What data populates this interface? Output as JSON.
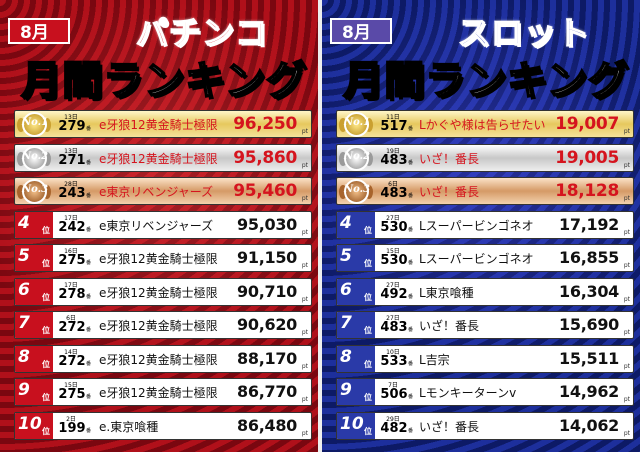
{
  "pachinko": {
    "month": "8月",
    "title_line1": "パチンコ",
    "title_line2": "月間ランキング",
    "rank_unit": "位",
    "point_unit": "pt",
    "day_unit": "日",
    "machine_unit": "番",
    "entries": [
      {
        "rank_label": "No.1",
        "day": "13日",
        "machine": "279",
        "name": "e牙狼12黄金騎士極限",
        "amount": "96,250"
      },
      {
        "rank_label": "No.2",
        "day": "13日",
        "machine": "271",
        "name": "e牙狼12黄金騎士極限",
        "amount": "95,860"
      },
      {
        "rank_label": "No.3",
        "day": "28日",
        "machine": "243",
        "name": "e東京リベンジャーズ",
        "amount": "95,460"
      },
      {
        "rank": "4",
        "day": "17日",
        "machine": "242",
        "name": "e東京リベンジャーズ",
        "amount": "95,030"
      },
      {
        "rank": "5",
        "day": "16日",
        "machine": "275",
        "name": "e牙狼12黄金騎士極限",
        "amount": "91,150"
      },
      {
        "rank": "6",
        "day": "17日",
        "machine": "278",
        "name": "e牙狼12黄金騎士極限",
        "amount": "90,710"
      },
      {
        "rank": "7",
        "day": "6日",
        "machine": "272",
        "name": "e牙狼12黄金騎士極限",
        "amount": "90,620"
      },
      {
        "rank": "8",
        "day": "14日",
        "machine": "272",
        "name": "e牙狼12黄金騎士極限",
        "amount": "88,170"
      },
      {
        "rank": "9",
        "day": "15日",
        "machine": "275",
        "name": "e牙狼12黄金騎士極限",
        "amount": "86,770"
      },
      {
        "rank": "10",
        "day": "2日",
        "machine": "199",
        "name": "e.東京喰種",
        "amount": "86,480"
      }
    ]
  },
  "slot": {
    "month": "8月",
    "title_line1": "スロット",
    "title_line2": "月間ランキング",
    "rank_unit": "位",
    "point_unit": "pt",
    "day_unit": "日",
    "machine_unit": "番",
    "entries": [
      {
        "rank_label": "No.1",
        "day": "11日",
        "machine": "517",
        "name": "Lかぐや様は告らせたい",
        "amount": "19,007"
      },
      {
        "rank_label": "No.2",
        "day": "19日",
        "machine": "483",
        "name": "いざ！番長",
        "amount": "19,005"
      },
      {
        "rank_label": "No.3",
        "day": "6日",
        "machine": "483",
        "name": "いざ！番長",
        "amount": "18,128"
      },
      {
        "rank": "4",
        "day": "27日",
        "machine": "530",
        "name": "Lスーパービンゴネオ",
        "amount": "17,192"
      },
      {
        "rank": "5",
        "day": "15日",
        "machine": "530",
        "name": "Lスーパービンゴネオ",
        "amount": "16,855"
      },
      {
        "rank": "6",
        "day": "27日",
        "machine": "492",
        "name": "L東京喰種",
        "amount": "16,304"
      },
      {
        "rank": "7",
        "day": "27日",
        "machine": "483",
        "name": "いざ！番長",
        "amount": "15,690"
      },
      {
        "rank": "8",
        "day": "10日",
        "machine": "533",
        "name": "L吉宗",
        "amount": "15,511"
      },
      {
        "rank": "9",
        "day": "7日",
        "machine": "506",
        "name": "Lモンキーターンⅴ",
        "amount": "14,962"
      },
      {
        "rank": "10",
        "day": "29日",
        "machine": "482",
        "name": "いざ！番長",
        "amount": "14,062"
      }
    ]
  },
  "colors": {
    "pachinko_accent": "#d5141e",
    "slot_accent": "#2d3cb0",
    "gold": "#e6c85e",
    "silver": "#c8c8c8",
    "bronze": "#d59a66"
  }
}
